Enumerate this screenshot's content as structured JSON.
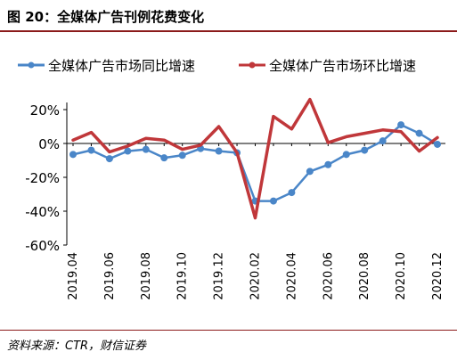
{
  "header": {
    "title": "图 20：全媒体广告刊例花费变化"
  },
  "footer": {
    "source": "资料来源：CTR，财信证券"
  },
  "colors": {
    "series1": "#4a86c8",
    "series2": "#c0373a",
    "rule": "#8b1a1a"
  },
  "chart_data": {
    "type": "line",
    "title": "",
    "xlabel": "",
    "ylabel": "",
    "x": [
      "2019.04",
      "2019.05",
      "2019.06",
      "2019.07",
      "2019.08",
      "2019.09",
      "2019.10",
      "2019.11",
      "2019.12",
      "2020.01",
      "2020.02",
      "2020.03",
      "2020.04",
      "2020.05",
      "2020.06",
      "2020.07",
      "2020.08",
      "2020.09",
      "2020.10",
      "2020.11",
      "2020.12"
    ],
    "x_tick_labels": [
      "2019.04",
      "2019.06",
      "2019.08",
      "2019.10",
      "2019.12",
      "2020.02",
      "2020.04",
      "2020.06",
      "2020.08",
      "2020.10",
      "2020.12"
    ],
    "y_ticks": [
      20,
      0,
      -20,
      -40,
      -60
    ],
    "y_tick_labels": [
      "20%",
      "0%",
      "-20%",
      "-40%",
      "-60%"
    ],
    "ylim": [
      -60,
      20
    ],
    "legend_position": "top",
    "series": [
      {
        "name": "全媒体广告市场同比增速",
        "values": [
          -6.5,
          -4,
          -9,
          -4.5,
          -3.5,
          -8.5,
          -7,
          -3,
          -4.5,
          -5.5,
          -34,
          -34,
          -29,
          -16.5,
          -12.5,
          -6.5,
          -4,
          1.5,
          11,
          6,
          -0.5
        ]
      },
      {
        "name": "全媒体广告市场环比增速",
        "values": [
          2,
          6.5,
          -5,
          -1.5,
          3,
          2,
          -3.5,
          -1,
          10,
          -5.5,
          -44,
          16,
          8.5,
          26,
          0.5,
          4,
          6,
          8,
          7,
          -4.5,
          3.5
        ]
      }
    ]
  }
}
